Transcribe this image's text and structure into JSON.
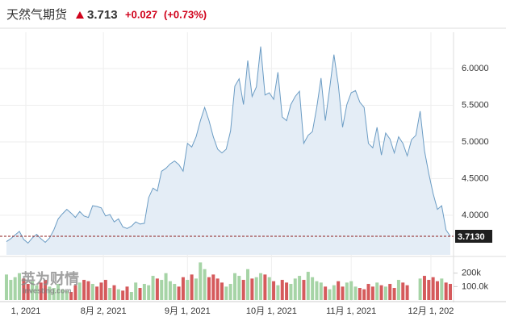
{
  "header": {
    "name": "天然气期货",
    "price": "3.713",
    "change": "+0.027",
    "change_pct": "(+0.73%)"
  },
  "watermark": {
    "brand": "英为财情",
    "site": "Investing.com"
  },
  "chart_data": [
    {
      "type": "area",
      "color": "#6b9cc4",
      "fill": "#e4edf6",
      "values": [
        3.64,
        3.68,
        3.73,
        3.78,
        3.67,
        3.62,
        3.69,
        3.74,
        3.68,
        3.63,
        3.69,
        3.8,
        3.95,
        4.02,
        4.08,
        4.03,
        3.97,
        4.05,
        3.99,
        3.97,
        4.13,
        4.12,
        4.1,
        3.99,
        4.01,
        3.91,
        3.95,
        3.84,
        3.82,
        3.85,
        3.91,
        3.88,
        3.89,
        4.24,
        4.37,
        4.33,
        4.6,
        4.64,
        4.7,
        4.74,
        4.69,
        4.6,
        4.98,
        4.93,
        5.07,
        5.29,
        5.47,
        5.29,
        5.07,
        4.9,
        4.85,
        4.9,
        5.15,
        5.76,
        5.86,
        5.51,
        6.11,
        5.62,
        5.75,
        6.3,
        5.64,
        5.67,
        5.58,
        5.95,
        5.34,
        5.29,
        5.51,
        5.62,
        5.69,
        4.98,
        5.09,
        5.14,
        5.47,
        5.87,
        5.29,
        5.73,
        6.19,
        5.78,
        5.2,
        5.51,
        5.67,
        5.7,
        5.54,
        5.47,
        4.98,
        4.92,
        5.2,
        4.82,
        5.12,
        5.04,
        4.85,
        5.07,
        4.98,
        4.81,
        5.03,
        5.09,
        5.42,
        4.88,
        4.57,
        4.3,
        4.08,
        4.13,
        3.8,
        3.713
      ],
      "last_price_label": "3.7130",
      "xlim": [
        0,
        103
      ],
      "xticks": [
        {
          "value": 4.5,
          "label": "1, 2021"
        },
        {
          "value": 22.5,
          "label": "8月 2, 2021"
        },
        {
          "value": 42,
          "label": "9月 1, 2021"
        },
        {
          "value": 61.5,
          "label": "10月 1, 2021"
        },
        {
          "value": 80,
          "label": "11月 1, 2021"
        },
        {
          "value": 98.5,
          "label": "12月 1, 202"
        }
      ],
      "ylim": [
        3.46,
        6.44
      ],
      "yticks": [
        {
          "value": 4,
          "label": "4.0000"
        },
        {
          "value": 4.5,
          "label": "4.5000"
        },
        {
          "value": 5,
          "label": "5.0000"
        },
        {
          "value": 5.5,
          "label": "5.5000"
        },
        {
          "value": 6,
          "label": "6.0000"
        }
      ],
      "grid": true
    },
    {
      "type": "bar",
      "up_color": "#a6d4a6",
      "down_color": "#d55a5c",
      "values": [
        190000,
        150000,
        170000,
        200000,
        160000,
        120000,
        140000,
        110000,
        130000,
        150000,
        100000,
        90000,
        120000,
        80000,
        70000,
        60000,
        110000,
        130000,
        150000,
        140000,
        120000,
        100000,
        130000,
        150000,
        90000,
        110000,
        80000,
        70000,
        100000,
        60000,
        130000,
        90000,
        120000,
        110000,
        180000,
        160000,
        150000,
        200000,
        140000,
        120000,
        100000,
        170000,
        150000,
        190000,
        160000,
        280000,
        230000,
        170000,
        190000,
        160000,
        130000,
        100000,
        120000,
        200000,
        180000,
        150000,
        230000,
        160000,
        170000,
        200000,
        190000,
        170000,
        140000,
        110000,
        150000,
        130000,
        120000,
        160000,
        180000,
        150000,
        210000,
        170000,
        140000,
        130000,
        100000,
        80000,
        110000,
        140000,
        100000,
        130000,
        140000,
        100000,
        90000,
        80000,
        120000,
        100000,
        130000,
        110000,
        100000,
        120000,
        90000,
        150000,
        130000,
        110000,
        null,
        null,
        160000,
        180000,
        150000,
        170000,
        140000,
        160000,
        130000,
        120000
      ],
      "ylim": [
        0,
        312500
      ],
      "yticks": [
        {
          "value": 200000,
          "label": "200k"
        },
        {
          "value": 100000,
          "label": "100.0k"
        }
      ]
    }
  ]
}
